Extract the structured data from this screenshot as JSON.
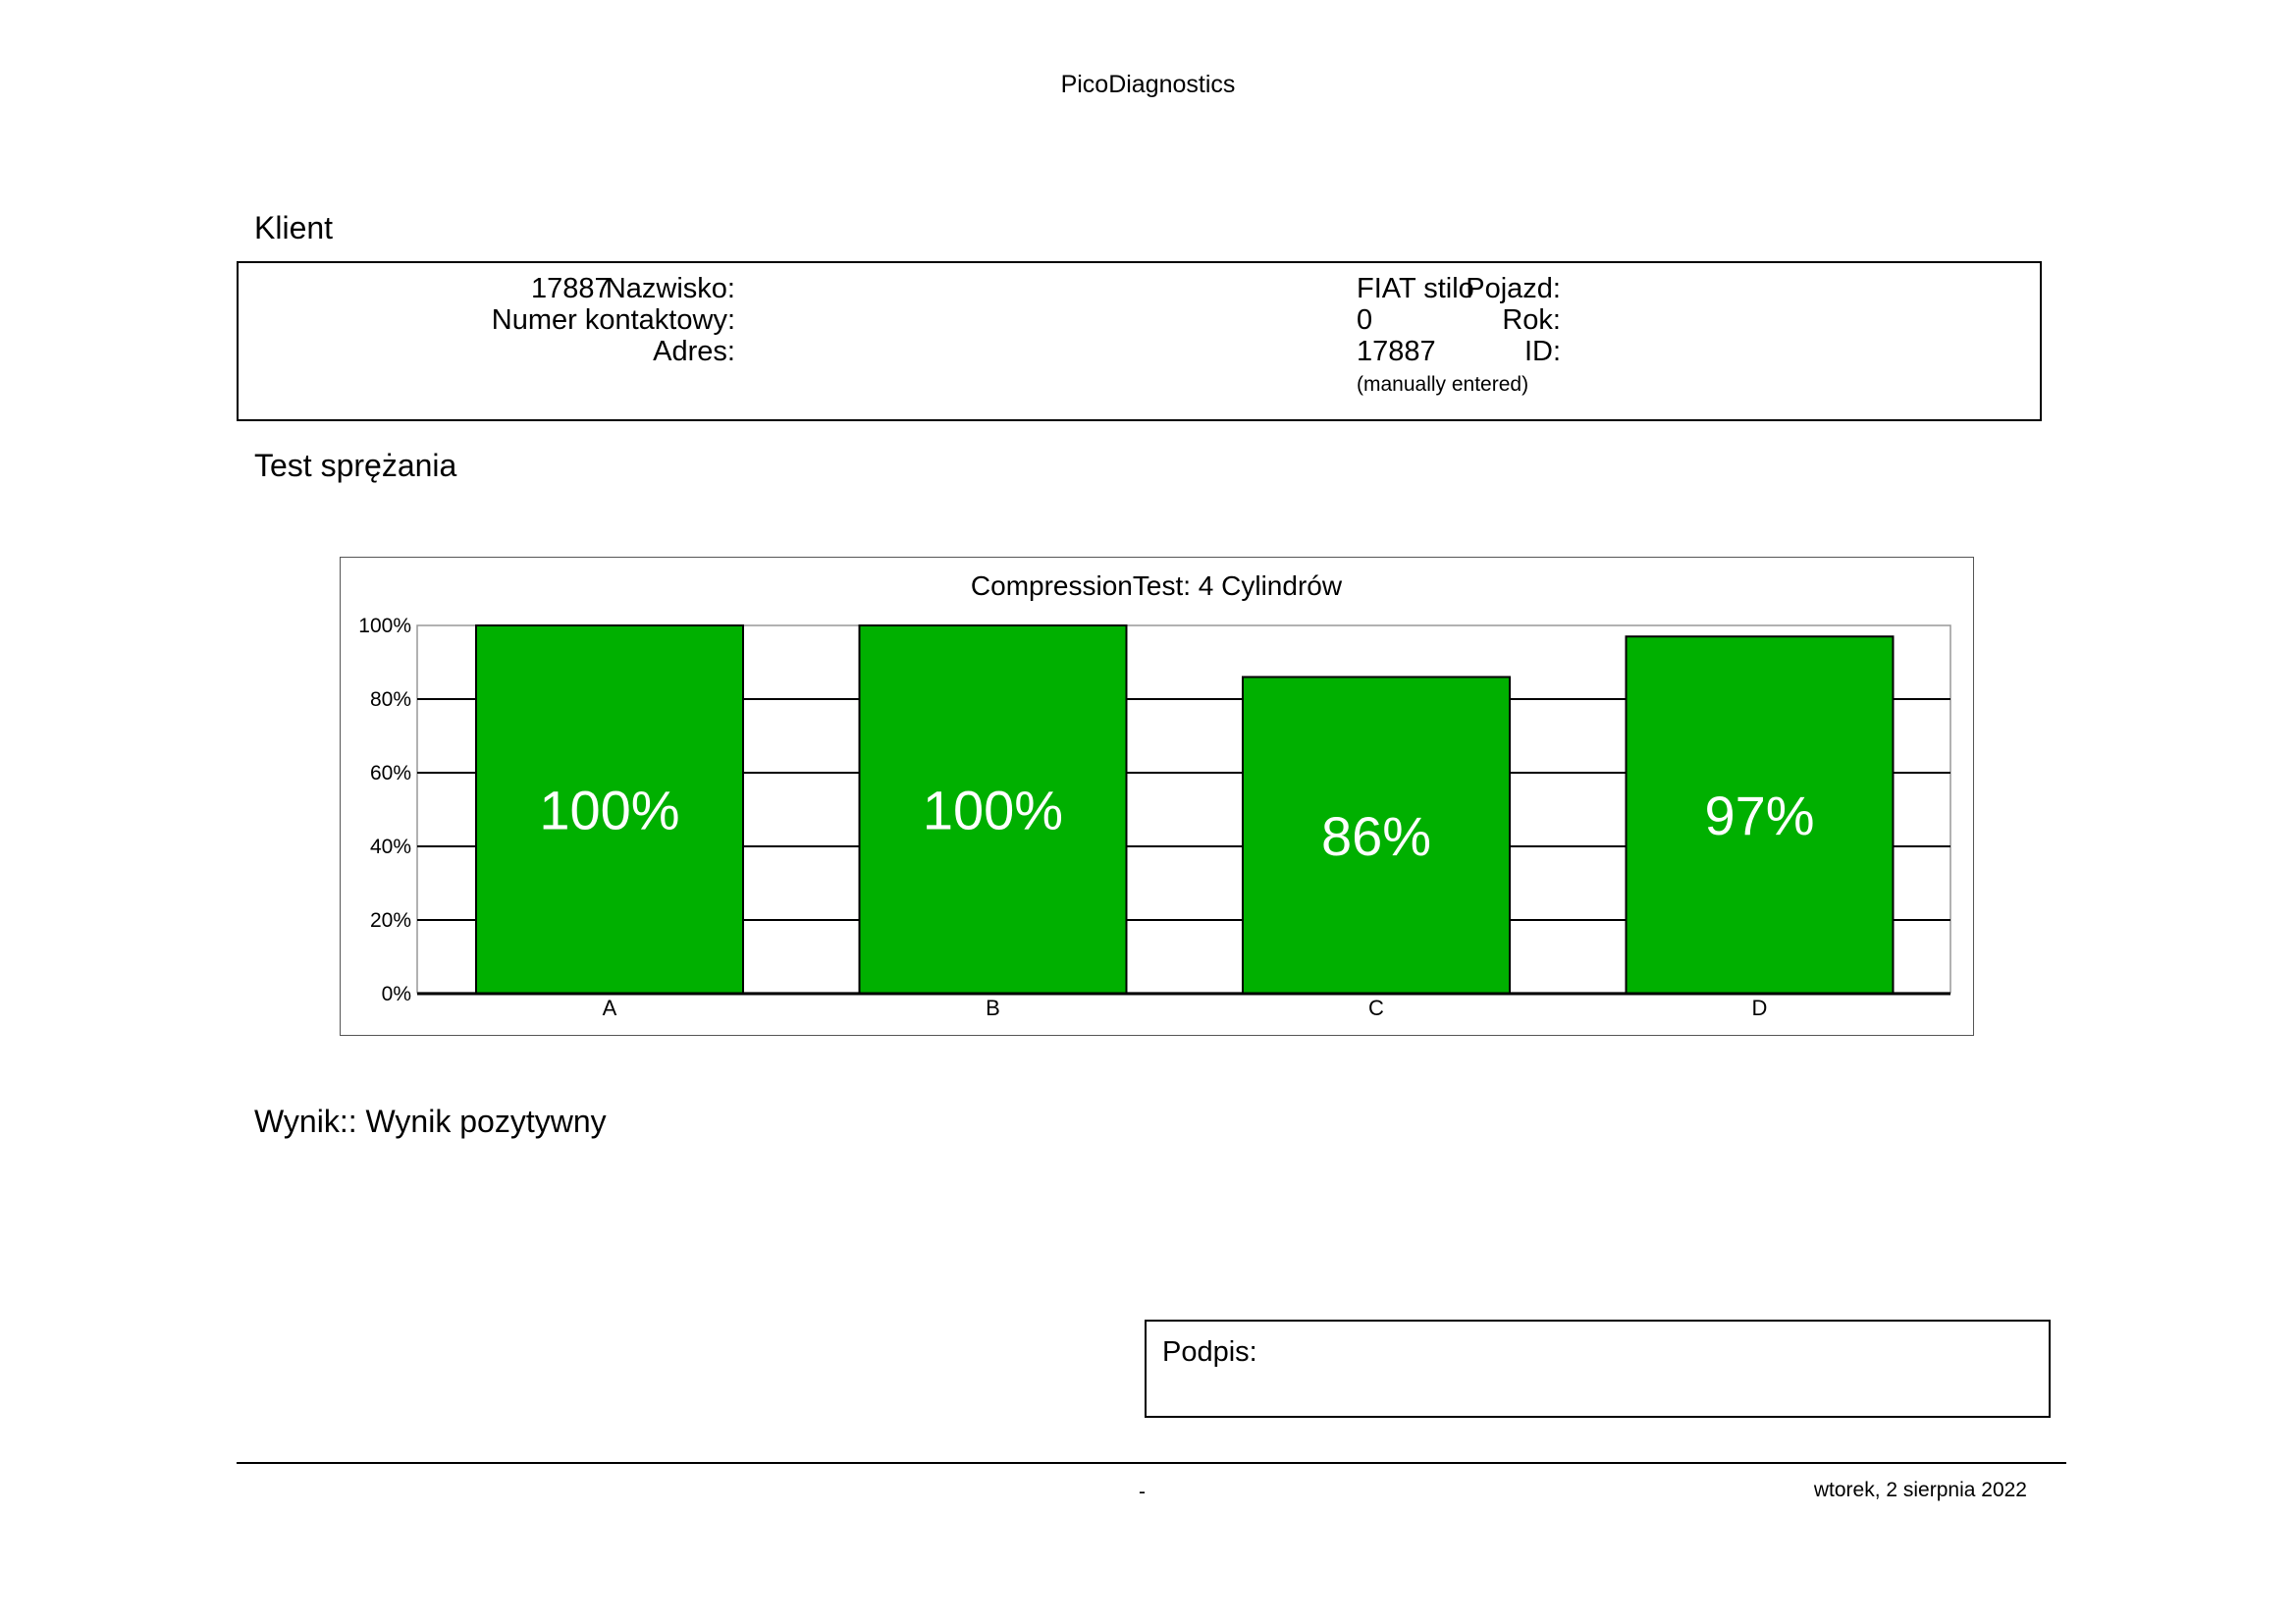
{
  "header": {
    "app_title": "PicoDiagnostics"
  },
  "client_section": {
    "title": "Klient",
    "surname_label": "Nazwisko:",
    "surname_value": "17887",
    "contact_label": "Numer kontaktowy:",
    "contact_value": "",
    "address_label": "Adres:",
    "address_value": "",
    "vehicle_label": "Pojazd:",
    "vehicle_value": "FIAT stilo",
    "year_label": "Rok:",
    "year_value": "0",
    "id_label": "ID:",
    "id_value": "17887",
    "id_note": "(manually entered)"
  },
  "test_section": {
    "title": "Test sprężania"
  },
  "chart_data": {
    "type": "bar",
    "title": "CompressionTest: 4 Cylindrów",
    "categories": [
      "A",
      "B",
      "C",
      "D"
    ],
    "values": [
      100,
      100,
      86,
      97
    ],
    "value_labels": [
      "100%",
      "100%",
      "86%",
      "97%"
    ],
    "ylim": [
      0,
      100
    ],
    "yticks": [
      "0%",
      "20%",
      "40%",
      "60%",
      "80%",
      "100%"
    ],
    "xlabel": "",
    "ylabel": "",
    "grid": true,
    "legend": "none",
    "bar_color": "#00b000",
    "label_color": "#ffffff"
  },
  "result": {
    "text": "Wynik:: Wynik pozytywny"
  },
  "signature": {
    "label": "Podpis:"
  },
  "footer": {
    "page_marker": "-",
    "date": "wtorek, 2 sierpnia 2022"
  }
}
